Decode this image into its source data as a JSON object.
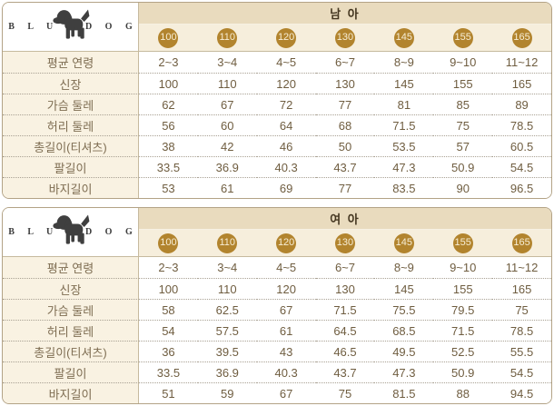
{
  "brand": {
    "letters": "B L U E D O G"
  },
  "colors": {
    "circle_accent": "#b2842e",
    "title_band": "#e9dbbe",
    "size_band": "#f6eedc",
    "label_cell": "#f9f2e2",
    "table_border": "#b3a386"
  },
  "tables": [
    {
      "title": "남 아",
      "sizes": [
        "100",
        "110",
        "120",
        "130",
        "145",
        "155",
        "165"
      ],
      "rows": [
        {
          "label": "평균 연령",
          "values": [
            "2~3",
            "3~4",
            "4~5",
            "6~7",
            "8~9",
            "9~10",
            "11~12"
          ]
        },
        {
          "label": "신장",
          "values": [
            "100",
            "110",
            "120",
            "130",
            "145",
            "155",
            "165"
          ]
        },
        {
          "label": "가슴 둘레",
          "values": [
            "62",
            "67",
            "72",
            "77",
            "81",
            "85",
            "89"
          ]
        },
        {
          "label": "허리 둘레",
          "values": [
            "56",
            "60",
            "64",
            "68",
            "71.5",
            "75",
            "78.5"
          ]
        },
        {
          "label": "총길이(티셔츠)",
          "values": [
            "38",
            "42",
            "46",
            "50",
            "53.5",
            "57",
            "60.5"
          ]
        },
        {
          "label": "팔길이",
          "values": [
            "33.5",
            "36.9",
            "40.3",
            "43.7",
            "47.3",
            "50.9",
            "54.5"
          ]
        },
        {
          "label": "바지길이",
          "values": [
            "53",
            "61",
            "69",
            "77",
            "83.5",
            "90",
            "96.5"
          ]
        }
      ]
    },
    {
      "title": "여 아",
      "sizes": [
        "100",
        "110",
        "120",
        "130",
        "145",
        "155",
        "165"
      ],
      "rows": [
        {
          "label": "평균 연령",
          "values": [
            "2~3",
            "3~4",
            "4~5",
            "6~7",
            "8~9",
            "9~10",
            "11~12"
          ]
        },
        {
          "label": "신장",
          "values": [
            "100",
            "110",
            "120",
            "130",
            "145",
            "155",
            "165"
          ]
        },
        {
          "label": "가슴 둘레",
          "values": [
            "58",
            "62.5",
            "67",
            "71.5",
            "75.5",
            "79.5",
            "75"
          ]
        },
        {
          "label": "허리 둘레",
          "values": [
            "54",
            "57.5",
            "61",
            "64.5",
            "68.5",
            "71.5",
            "78.5"
          ]
        },
        {
          "label": "총길이(티셔츠)",
          "values": [
            "36",
            "39.5",
            "43",
            "46.5",
            "49.5",
            "52.5",
            "55.5"
          ]
        },
        {
          "label": "팔길이",
          "values": [
            "33.5",
            "36.9",
            "40.3",
            "43.7",
            "47.3",
            "50.9",
            "54.5"
          ]
        },
        {
          "label": "바지길이",
          "values": [
            "51",
            "59",
            "67",
            "75",
            "81.5",
            "88",
            "94.5"
          ]
        }
      ]
    }
  ]
}
